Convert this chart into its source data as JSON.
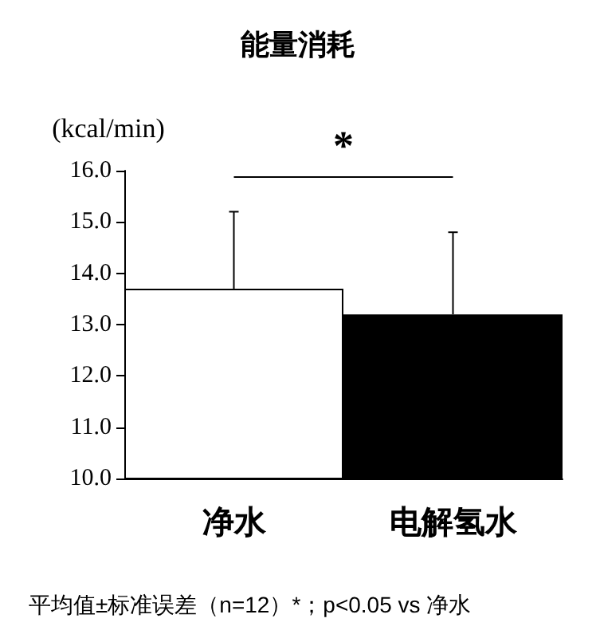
{
  "chart_data": {
    "type": "bar",
    "title": "能量消耗",
    "ylabel": "(kcal/min)",
    "categories": [
      "净水",
      "电解氢水"
    ],
    "values": [
      13.7,
      13.2
    ],
    "colors": [
      "#ffffff",
      "#000000"
    ],
    "errors": [
      1.5,
      1.6
    ],
    "ylim": [
      10,
      16
    ],
    "yticks": [
      {
        "value": 10,
        "label": "10.0"
      },
      {
        "value": 11,
        "label": "11.0"
      },
      {
        "value": 12,
        "label": "12.0"
      },
      {
        "value": 13,
        "label": "13.0"
      },
      {
        "value": 14,
        "label": "14.0"
      },
      {
        "value": 15,
        "label": "15.0"
      },
      {
        "value": 16,
        "label": "16.0"
      }
    ],
    "grid": false,
    "annotations": [
      "*",
      "平均值±标准误差（n=12）*；p<0.05 vs 净水"
    ]
  }
}
